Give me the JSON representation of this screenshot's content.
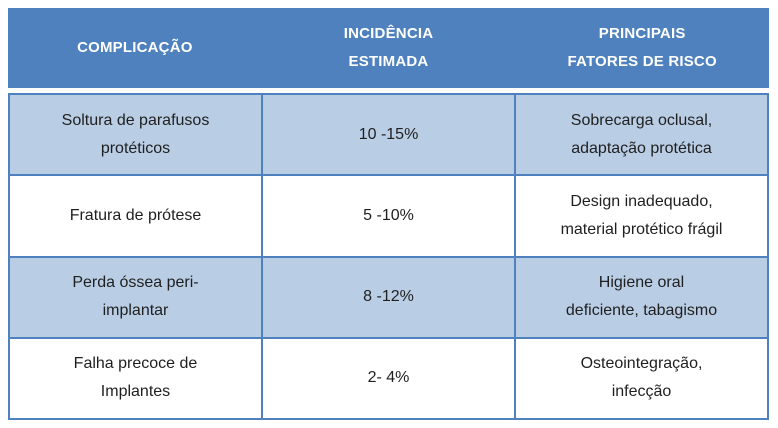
{
  "colors": {
    "header_bg": "#4E81BD",
    "header_text": "#FFFFFF",
    "row_alt_bg": "#B9CDE5",
    "row_bg": "#FFFFFF",
    "border": "#4E81BD",
    "body_text": "#1F1F1F",
    "page_bg": "#FFFFFF"
  },
  "table": {
    "headers": [
      "COMPLICAÇÃO",
      "INCIDÊNCIA\nESTIMADA",
      "PRINCIPAIS\nFATORES DE RISCO"
    ],
    "rows": [
      {
        "cells": [
          "Soltura de parafusos\nprotéticos",
          "10 -15%",
          "Sobrecarga oclusal,\nadaptação protética"
        ]
      },
      {
        "cells": [
          "Fratura de prótese",
          "5 -10%",
          "Design inadequado,\nmaterial protético frágil"
        ]
      },
      {
        "cells": [
          "Perda óssea peri-\nimplantar",
          "8 -12%",
          "Higiene oral\ndeficiente, tabagismo"
        ]
      },
      {
        "cells": [
          "Falha precoce de\nImplantes",
          "2- 4%",
          "Osteointegração,\ninfecção"
        ]
      }
    ]
  }
}
